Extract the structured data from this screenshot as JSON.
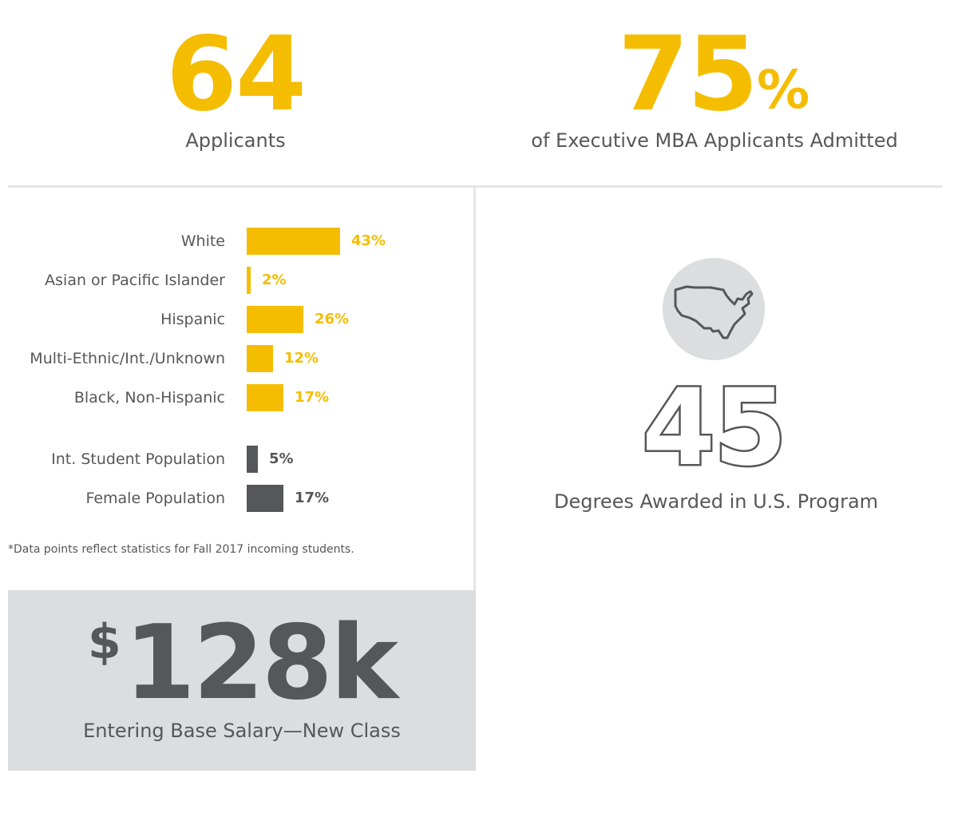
{
  "top_stats": {
    "applicants": {
      "value": "64",
      "caption": "Applicants"
    },
    "admitted": {
      "value": "75",
      "unit": "%",
      "caption": "of Executive MBA Applicants Admitted"
    }
  },
  "chart_data": {
    "type": "bar",
    "orientation": "horizontal",
    "unit": "%",
    "xlim": [
      0,
      43
    ],
    "groups": [
      {
        "color": "#f5bd02",
        "bars": [
          {
            "label": "White",
            "value": 43,
            "display": "43%"
          },
          {
            "label": "Asian or Pacific Islander",
            "value": 2,
            "display": "2%"
          },
          {
            "label": "Hispanic",
            "value": 26,
            "display": "26%"
          },
          {
            "label": "Multi-Ethnic/Int./Unknown",
            "value": 12,
            "display": "12%"
          },
          {
            "label": "Black, Non-Hispanic",
            "value": 17,
            "display": "17%"
          }
        ]
      },
      {
        "color": "#555759",
        "bars": [
          {
            "label": "Int. Student Population",
            "value": 5,
            "display": "5%"
          },
          {
            "label": "Female Population",
            "value": 17,
            "display": "17%"
          }
        ]
      }
    ]
  },
  "footnote": "*Data points reflect statistics for Fall 2017 incoming students.",
  "salary": {
    "prefix": "$",
    "value": "128k",
    "caption": "Entering Base Salary—New Class"
  },
  "degrees": {
    "icon": "us-map-icon",
    "value": "45",
    "caption": "Degrees Awarded in U.S. Program"
  },
  "colors": {
    "accent": "#f5bd02",
    "dark": "#555759",
    "panel": "#dcdddf",
    "divider": "#e6e6e6",
    "icon_bg": "#dcdddf"
  }
}
